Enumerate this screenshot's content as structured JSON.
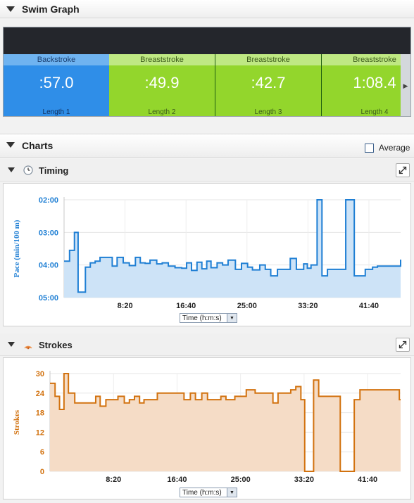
{
  "swim_graph": {
    "title": "Swim Graph",
    "lengths": [
      {
        "stroke": "Backstroke",
        "time": ":57.0",
        "label": "Length 1",
        "type": "back"
      },
      {
        "stroke": "Breaststroke",
        "time": ":49.9",
        "label": "Length 2",
        "type": "breast"
      },
      {
        "stroke": "Breaststroke",
        "time": ":42.7",
        "label": "Length 3",
        "type": "breast"
      },
      {
        "stroke": "Breaststroke",
        "time": "1:08.4",
        "label": "Length 4",
        "type": "breast"
      }
    ],
    "nav_left_icon": "arrow-left-icon",
    "nav_right_icon": "arrow-right-icon"
  },
  "charts_section": {
    "title": "Charts",
    "average_label": "Average",
    "average_checked": false
  },
  "timing": {
    "title": "Timing",
    "icon": "clock-icon",
    "axis_select": "Time (h:m:s)"
  },
  "strokes": {
    "title": "Strokes",
    "icon": "strokes-icon",
    "axis_select": "Time (h:m:s)"
  },
  "chart_data": [
    {
      "type": "area",
      "ylabel": "Pace (min/100 m)",
      "x_unit": "seconds",
      "xlim": [
        0,
        2760
      ],
      "ylim": [
        120,
        300
      ],
      "y_reversed": true,
      "yticks": [
        {
          "value": 120,
          "label": "02:00"
        },
        {
          "value": 180,
          "label": "03:00"
        },
        {
          "value": 240,
          "label": "04:00"
        },
        {
          "value": 300,
          "label": "05:00"
        }
      ],
      "xticks": [
        {
          "value": 500,
          "label": "8:20"
        },
        {
          "value": 1000,
          "label": "16:40"
        },
        {
          "value": 1500,
          "label": "25:00"
        },
        {
          "value": 2000,
          "label": "33:20"
        },
        {
          "value": 2500,
          "label": "41:40"
        }
      ],
      "color": "#1f7fd4",
      "fill": "#cde3f7",
      "x": [
        0,
        45,
        85,
        115,
        175,
        215,
        255,
        295,
        345,
        395,
        435,
        485,
        535,
        585,
        625,
        665,
        705,
        760,
        805,
        855,
        910,
        965,
        1005,
        1045,
        1090,
        1130,
        1170,
        1205,
        1255,
        1300,
        1345,
        1405,
        1455,
        1505,
        1545,
        1605,
        1650,
        1695,
        1750,
        1795,
        1855,
        1905,
        1965,
        1995,
        2025,
        2075,
        2115,
        2160,
        2225,
        2270,
        2310,
        2380,
        2425,
        2470,
        2530,
        2550,
        2570,
        2610,
        2660,
        2700,
        2760
      ],
      "y": [
        233,
        213,
        180,
        290,
        244,
        236,
        233,
        226,
        226,
        242,
        226,
        236,
        241,
        226,
        236,
        237,
        231,
        238,
        236,
        242,
        245,
        246,
        236,
        250,
        235,
        247,
        233,
        245,
        236,
        240,
        231,
        248,
        237,
        244,
        249,
        240,
        248,
        260,
        248,
        248,
        228,
        248,
        238,
        246,
        240,
        120,
        260,
        248,
        248,
        248,
        120,
        260,
        260,
        248,
        244,
        244,
        242,
        242,
        242,
        242,
        230
      ]
    },
    {
      "type": "area",
      "ylabel": "Strokes",
      "x_unit": "seconds",
      "xlim": [
        0,
        2760
      ],
      "ylim": [
        0,
        30
      ],
      "yticks": [
        {
          "value": 0,
          "label": "0"
        },
        {
          "value": 6,
          "label": "6"
        },
        {
          "value": 12,
          "label": "12"
        },
        {
          "value": 18,
          "label": "18"
        },
        {
          "value": 24,
          "label": "24"
        },
        {
          "value": 30,
          "label": "30"
        }
      ],
      "xticks": [
        {
          "value": 500,
          "label": "8:20"
        },
        {
          "value": 1000,
          "label": "16:40"
        },
        {
          "value": 1500,
          "label": "25:00"
        },
        {
          "value": 2000,
          "label": "33:20"
        },
        {
          "value": 2500,
          "label": "41:40"
        }
      ],
      "color": "#d2720f",
      "fill": "#f5dcc6",
      "x": [
        0,
        40,
        75,
        110,
        145,
        195,
        250,
        310,
        360,
        395,
        440,
        495,
        535,
        585,
        625,
        665,
        705,
        740,
        800,
        845,
        895,
        955,
        1005,
        1055,
        1105,
        1145,
        1195,
        1240,
        1295,
        1345,
        1385,
        1455,
        1505,
        1545,
        1615,
        1655,
        1695,
        1755,
        1795,
        1845,
        1895,
        1935,
        1975,
        2005,
        2035,
        2075,
        2115,
        2165,
        2215,
        2285,
        2330,
        2395,
        2440,
        2485,
        2545,
        2590,
        2620,
        2700,
        2750,
        2760
      ],
      "y": [
        27,
        23,
        19,
        30,
        24,
        21,
        21,
        21,
        23,
        20,
        22,
        22,
        23,
        21,
        22,
        23,
        21,
        22,
        22,
        24,
        24,
        24,
        24,
        22,
        24,
        22,
        24,
        22,
        22,
        23,
        22,
        23,
        23,
        25,
        24,
        24,
        24,
        21,
        24,
        24,
        25,
        26,
        22,
        0,
        0,
        28,
        23,
        23,
        23,
        0,
        0,
        22,
        25,
        25,
        25,
        25,
        25,
        25,
        22,
        22
      ]
    }
  ]
}
